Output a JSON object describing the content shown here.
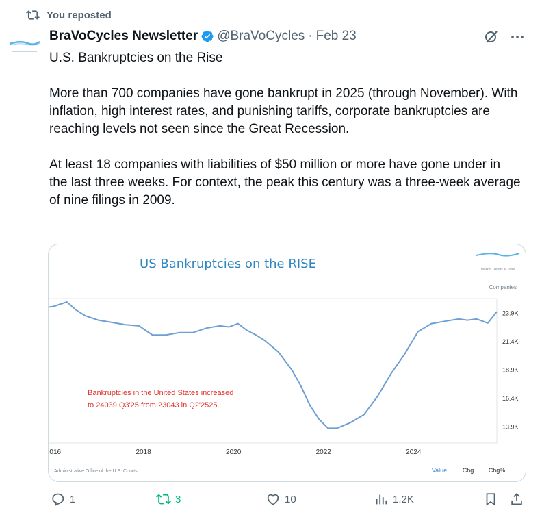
{
  "repost_label": "You reposted",
  "author": {
    "name": "BraVoCycles Newsletter",
    "handle": "@BraVoCycles",
    "date": "Feb 23",
    "verified_color": "#1d9bf0"
  },
  "post": {
    "paragraphs": [
      "U.S. Bankruptcies on the Rise",
      "More than 700 companies have gone bankrupt in 2025 (through November). With inflation, high interest rates, and punishing tariffs, corporate bankruptcies are reaching levels not seen since the Great Recession.",
      "At least 18 companies with liabilities of $50 million or more have gone under in the last three weeks. For context, the peak this century was a three-week average of nine filings in 2009."
    ]
  },
  "chart_data": {
    "type": "line",
    "title": "US Bankruptcies on the RISE",
    "logo_text": "Market Trends & Turns",
    "y_unit_label": "Companies",
    "y_ticks": [
      "23.9K",
      "21.4K",
      "18.9K",
      "16.4K",
      "13.9K"
    ],
    "x_ticks": [
      "2016",
      "2018",
      "2020",
      "2022",
      "2024"
    ],
    "ylim": [
      12500,
      25200
    ],
    "xlim": [
      2016,
      2025.85
    ],
    "annotation": [
      "Bankruptcies in the United States increased",
      "to 24039 Q3'25 from 23043 in Q2'2525."
    ],
    "annotation_color": "#e0312b",
    "line_color": "#6e9fd2",
    "title_color": "#2e86c1",
    "source": "Administrative Office of the U.S. Courts",
    "tabs": [
      "Value",
      "Chg",
      "Chg%"
    ],
    "active_tab": "Value",
    "series": [
      {
        "x": [
          2015.8,
          2016.0,
          2016.3,
          2016.5,
          2016.7,
          2017.0,
          2017.3,
          2017.6,
          2017.9,
          2018.2,
          2018.5,
          2018.8,
          2019.1,
          2019.4,
          2019.7,
          2019.9,
          2020.1,
          2020.3,
          2020.5,
          2020.7,
          2021.0,
          2021.3,
          2021.5,
          2021.7,
          2021.9,
          2022.1,
          2022.3,
          2022.6,
          2022.9,
          2023.2,
          2023.5,
          2023.8,
          2024.1,
          2024.4,
          2024.7,
          2025.0,
          2025.2,
          2025.4,
          2025.65,
          2025.85
        ],
        "y": [
          24400,
          24500,
          24900,
          24200,
          23700,
          23300,
          23100,
          22900,
          22800,
          22000,
          22000,
          22200,
          22200,
          22600,
          22800,
          22700,
          23000,
          22400,
          22000,
          21500,
          20500,
          18900,
          17500,
          15800,
          14600,
          13800,
          13800,
          14300,
          15000,
          16600,
          18600,
          20300,
          22300,
          23000,
          23200,
          23400,
          23300,
          23400,
          23043,
          24039
        ]
      }
    ]
  },
  "actions": {
    "replies": "1",
    "reposts": "3",
    "likes": "10",
    "views": "1.2K"
  },
  "colors": {
    "secondary_text": "#536471",
    "repost_green": "#00ba7c",
    "border": "#cfd9de"
  }
}
